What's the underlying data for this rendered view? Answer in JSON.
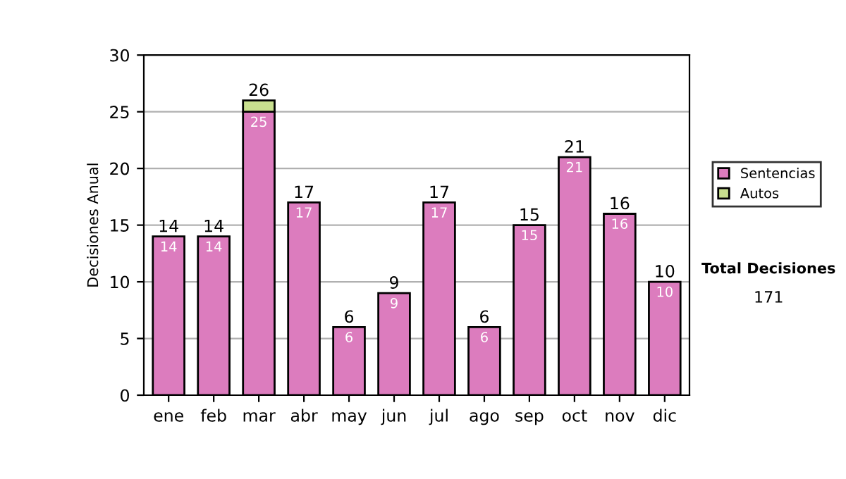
{
  "chart_data": {
    "type": "bar",
    "stacked": true,
    "ylabel": "Decisiones Anual",
    "categories": [
      "ene",
      "feb",
      "mar",
      "abr",
      "may",
      "jun",
      "jul",
      "ago",
      "sep",
      "oct",
      "nov",
      "dic"
    ],
    "series": [
      {
        "name": "Sentencias",
        "color": "#dc7cbe",
        "values": [
          14,
          14,
          25,
          17,
          6,
          9,
          17,
          6,
          15,
          21,
          16,
          10
        ],
        "value_labels": [
          "14",
          "14",
          "25",
          "17",
          "6",
          "9",
          "17",
          "6",
          "15",
          "21",
          "16",
          "10"
        ]
      },
      {
        "name": "Autos",
        "color": "#c9e08f",
        "values": [
          null,
          null,
          1,
          null,
          null,
          null,
          null,
          null,
          null,
          null,
          null,
          null
        ]
      }
    ],
    "totals": [
      "14",
      "14",
      "26",
      "17",
      "6",
      "9",
      "17",
      "6",
      "15",
      "21",
      "16",
      "10"
    ],
    "ylim": [
      0,
      30
    ],
    "yticks": [
      0,
      5,
      10,
      15,
      20,
      25,
      30
    ],
    "grid": "y",
    "legend": "right",
    "annotations": [
      "Total Decisiones",
      "171"
    ]
  }
}
